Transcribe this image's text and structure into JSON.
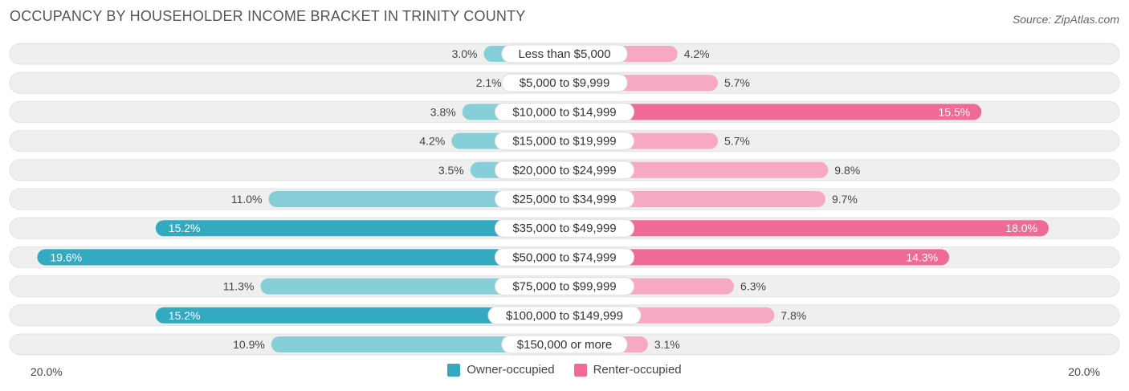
{
  "header": {
    "title": "OCCUPANCY BY HOUSEHOLDER INCOME BRACKET IN TRINITY COUNTY",
    "source": "Source: ZipAtlas.com"
  },
  "colors": {
    "owner_strong": "#33aabf",
    "owner_light": "#86cfd8",
    "renter_strong": "#f06a96",
    "renter_light": "#f7a8c2",
    "row_bg": "#efefef"
  },
  "chart_data": {
    "type": "bar",
    "orientation": "horizontal-diverging",
    "title": "OCCUPANCY BY HOUSEHOLDER INCOME BRACKET IN TRINITY COUNTY",
    "categories": [
      "Less than $5,000",
      "$5,000 to $9,999",
      "$10,000 to $14,999",
      "$15,000 to $19,999",
      "$20,000 to $24,999",
      "$25,000 to $34,999",
      "$35,000 to $49,999",
      "$50,000 to $74,999",
      "$75,000 to $99,999",
      "$100,000 to $149,999",
      "$150,000 or more"
    ],
    "series": [
      {
        "name": "Owner-occupied",
        "values": [
          3.0,
          2.1,
          3.8,
          4.2,
          3.5,
          11.0,
          15.2,
          19.6,
          11.3,
          15.2,
          10.9
        ],
        "labels": [
          "3.0%",
          "2.1%",
          "3.8%",
          "4.2%",
          "3.5%",
          "11.0%",
          "15.2%",
          "19.6%",
          "11.3%",
          "15.2%",
          "10.9%"
        ]
      },
      {
        "name": "Renter-occupied",
        "values": [
          4.2,
          5.7,
          15.5,
          5.7,
          9.8,
          9.7,
          18.0,
          14.3,
          6.3,
          7.8,
          3.1
        ],
        "labels": [
          "4.2%",
          "5.7%",
          "15.5%",
          "5.7%",
          "9.8%",
          "9.7%",
          "18.0%",
          "14.3%",
          "6.3%",
          "7.8%",
          "3.1%"
        ]
      }
    ],
    "xlim": [
      -20,
      20
    ],
    "axis_min_label": "20.0%",
    "axis_max_label": "20.0%",
    "legend_position": "bottom-center"
  },
  "legend": {
    "owner": "Owner-occupied",
    "renter": "Renter-occupied"
  }
}
